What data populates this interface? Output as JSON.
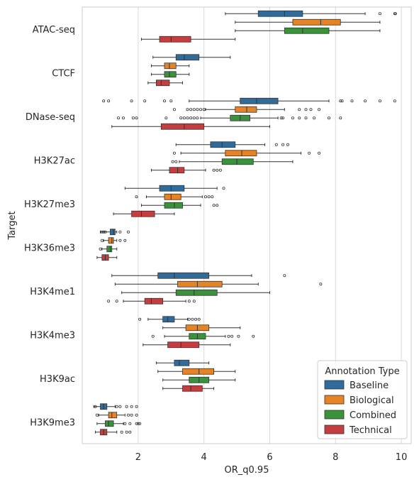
{
  "chart_data": {
    "type": "box",
    "orientation": "horizontal",
    "xlabel": "OR_q0.95",
    "ylabel": "Target",
    "xlim": [
      0.3,
      10.3
    ],
    "xticks": [
      2,
      4,
      6,
      8,
      10
    ],
    "grid": true,
    "legend": {
      "title": "Annotation Type",
      "placement": "bottom-right"
    },
    "colors": {
      "Baseline": "#2f6c9b",
      "Biological": "#e58325",
      "Combined": "#3a923a",
      "Technical": "#c53d3e"
    },
    "series_names": [
      "Baseline",
      "Biological",
      "Combined",
      "Technical"
    ],
    "categories": [
      "ATAC-seq",
      "CTCF",
      "DNase-seq",
      "H3K27ac",
      "H3K27me3",
      "H3K36me3",
      "H3K4me1",
      "H3K4me3",
      "H3K9ac",
      "H3K9me3"
    ],
    "boxes": [
      {
        "category": "ATAC-seq",
        "series": "Baseline",
        "whislo": 4.65,
        "q1": 5.65,
        "med": 6.45,
        "q3": 7.0,
        "whishi": 8.9,
        "fliers": [
          9.35,
          9.8,
          9.82
        ]
      },
      {
        "category": "ATAC-seq",
        "series": "Biological",
        "whislo": 4.95,
        "q1": 6.7,
        "med": 7.55,
        "q3": 8.15,
        "whishi": 9.35,
        "fliers": []
      },
      {
        "category": "ATAC-seq",
        "series": "Combined",
        "whislo": 4.95,
        "q1": 6.45,
        "med": 7.0,
        "q3": 7.8,
        "whishi": 9.35,
        "fliers": []
      },
      {
        "category": "ATAC-seq",
        "series": "Technical",
        "whislo": 2.1,
        "q1": 2.65,
        "med": 3.0,
        "q3": 3.6,
        "whishi": 4.95,
        "fliers": []
      },
      {
        "category": "CTCF",
        "series": "Baseline",
        "whislo": 2.45,
        "q1": 3.15,
        "med": 3.4,
        "q3": 3.85,
        "whishi": 4.8,
        "fliers": []
      },
      {
        "category": "CTCF",
        "series": "Biological",
        "whislo": 2.4,
        "q1": 2.8,
        "med": 2.95,
        "q3": 3.15,
        "whishi": 3.55,
        "fliers": []
      },
      {
        "category": "CTCF",
        "series": "Combined",
        "whislo": 2.4,
        "q1": 2.8,
        "med": 2.95,
        "q3": 3.15,
        "whishi": 3.55,
        "fliers": []
      },
      {
        "category": "CTCF",
        "series": "Technical",
        "whislo": 2.3,
        "q1": 2.55,
        "med": 2.7,
        "q3": 2.95,
        "whishi": 3.35,
        "fliers": []
      },
      {
        "category": "DNase-seq",
        "series": "Baseline",
        "whislo": 3.55,
        "q1": 5.1,
        "med": 5.6,
        "q3": 6.25,
        "whishi": 7.8,
        "fliers": [
          0.95,
          1.1,
          1.8,
          2.2,
          2.8,
          3.0,
          8.15,
          8.2,
          8.5,
          8.9,
          9.35,
          9.8
        ]
      },
      {
        "category": "DNase-seq",
        "series": "Biological",
        "whislo": 4.05,
        "q1": 4.95,
        "med": 5.3,
        "q3": 5.6,
        "whishi": 6.45,
        "fliers": [
          3.1,
          3.5,
          3.6,
          3.7,
          3.8,
          3.9,
          4.0,
          6.9,
          7.1,
          7.25,
          7.5
        ]
      },
      {
        "category": "DNase-seq",
        "series": "Combined",
        "whislo": 3.9,
        "q1": 4.8,
        "med": 5.1,
        "q3": 5.4,
        "whishi": 6.25,
        "fliers": [
          1.4,
          1.55,
          1.85,
          1.95,
          2.85,
          3.3,
          3.4,
          3.5,
          3.6,
          3.7,
          3.8,
          6.35,
          6.4,
          6.7,
          6.9,
          7.1,
          7.35,
          7.8,
          8.15
        ]
      },
      {
        "category": "DNase-seq",
        "series": "Technical",
        "whislo": 1.2,
        "q1": 2.7,
        "med": 3.4,
        "q3": 4.0,
        "whishi": 6.0,
        "fliers": []
      },
      {
        "category": "H3K27ac",
        "series": "Baseline",
        "whislo": 3.15,
        "q1": 4.2,
        "med": 4.55,
        "q3": 4.95,
        "whishi": 5.85,
        "fliers": [
          6.2,
          6.4,
          6.55
        ]
      },
      {
        "category": "H3K27ac",
        "series": "Biological",
        "whislo": 3.3,
        "q1": 4.65,
        "med": 5.15,
        "q3": 5.6,
        "whishi": 6.95,
        "fliers": [
          3.1,
          7.2,
          7.5
        ]
      },
      {
        "category": "H3K27ac",
        "series": "Combined",
        "whislo": 3.25,
        "q1": 4.55,
        "med": 5.0,
        "q3": 5.5,
        "whishi": 6.7,
        "fliers": [
          3.05,
          3.15
        ]
      },
      {
        "category": "H3K27ac",
        "series": "Technical",
        "whislo": 2.4,
        "q1": 2.95,
        "med": 3.2,
        "q3": 3.4,
        "whishi": 4.05,
        "fliers": [
          4.3,
          4.4,
          4.5
        ]
      },
      {
        "category": "H3K27me3",
        "series": "Baseline",
        "whislo": 1.6,
        "q1": 2.65,
        "med": 3.0,
        "q3": 3.4,
        "whishi": 4.4,
        "fliers": [
          4.6
        ]
      },
      {
        "category": "H3K27me3",
        "series": "Biological",
        "whislo": 2.25,
        "q1": 2.8,
        "med": 3.0,
        "q3": 3.3,
        "whishi": 3.95,
        "fliers": [
          1.95,
          4.05,
          4.15,
          4.25
        ]
      },
      {
        "category": "H3K27me3",
        "series": "Combined",
        "whislo": 2.1,
        "q1": 2.8,
        "med": 3.1,
        "q3": 3.35,
        "whishi": 3.9,
        "fliers": [
          4.3,
          4.4
        ]
      },
      {
        "category": "H3K27me3",
        "series": "Technical",
        "whislo": 1.25,
        "q1": 1.8,
        "med": 2.1,
        "q3": 2.5,
        "whishi": 3.1,
        "fliers": []
      },
      {
        "category": "H3K36me3",
        "series": "Baseline",
        "whislo": 0.85,
        "q1": 1.15,
        "med": 1.25,
        "q3": 1.3,
        "whishi": 1.35,
        "fliers": [
          0.9,
          0.95,
          1.0,
          1.45,
          1.7
        ]
      },
      {
        "category": "H3K36me3",
        "series": "Biological",
        "whislo": 0.95,
        "q1": 1.1,
        "med": 1.2,
        "q3": 1.25,
        "whishi": 1.35,
        "fliers": [
          0.9,
          1.45,
          1.6
        ]
      },
      {
        "category": "H3K36me3",
        "series": "Combined",
        "whislo": 0.9,
        "q1": 1.05,
        "med": 1.15,
        "q3": 1.2,
        "whishi": 1.35,
        "fliers": [
          0.85
        ]
      },
      {
        "category": "H3K36me3",
        "series": "Technical",
        "whislo": 0.75,
        "q1": 0.9,
        "med": 1.0,
        "q3": 1.1,
        "whishi": 1.35,
        "fliers": []
      },
      {
        "category": "H3K4me1",
        "series": "Baseline",
        "whislo": 1.2,
        "q1": 2.6,
        "med": 3.1,
        "q3": 4.15,
        "whishi": 5.45,
        "fliers": [
          6.45
        ]
      },
      {
        "category": "H3K4me1",
        "series": "Biological",
        "whislo": 1.3,
        "q1": 3.2,
        "med": 3.8,
        "q3": 4.55,
        "whishi": 5.65,
        "fliers": [
          7.55
        ]
      },
      {
        "category": "H3K4me1",
        "series": "Combined",
        "whislo": 1.5,
        "q1": 3.15,
        "med": 3.7,
        "q3": 4.4,
        "whishi": 6.0,
        "fliers": []
      },
      {
        "category": "H3K4me1",
        "series": "Technical",
        "whislo": 1.55,
        "q1": 2.2,
        "med": 2.4,
        "q3": 2.75,
        "whishi": 3.45,
        "fliers": [
          1.1,
          1.35,
          3.55,
          3.7
        ]
      },
      {
        "category": "H3K4me3",
        "series": "Baseline",
        "whislo": 2.3,
        "q1": 2.75,
        "med": 2.9,
        "q3": 3.1,
        "whishi": 3.5,
        "fliers": [
          2.05,
          3.55,
          3.65,
          3.75,
          3.85
        ]
      },
      {
        "category": "H3K4me3",
        "series": "Biological",
        "whislo": 2.75,
        "q1": 3.45,
        "med": 3.8,
        "q3": 4.15,
        "whishi": 5.1,
        "fliers": []
      },
      {
        "category": "H3K4me3",
        "series": "Combined",
        "whislo": 2.8,
        "q1": 3.55,
        "med": 3.8,
        "q3": 4.05,
        "whishi": 4.65,
        "fliers": [
          2.45,
          4.75,
          4.85,
          5.05,
          5.5
        ]
      },
      {
        "category": "H3K4me3",
        "series": "Technical",
        "whislo": 2.15,
        "q1": 2.9,
        "med": 3.3,
        "q3": 3.85,
        "whishi": 4.8,
        "fliers": []
      },
      {
        "category": "H3K9ac",
        "series": "Baseline",
        "whislo": 2.55,
        "q1": 3.1,
        "med": 3.25,
        "q3": 3.55,
        "whishi": 4.15,
        "fliers": []
      },
      {
        "category": "H3K9ac",
        "series": "Biological",
        "whislo": 2.6,
        "q1": 3.35,
        "med": 3.85,
        "q3": 4.3,
        "whishi": 4.95,
        "fliers": []
      },
      {
        "category": "H3K9ac",
        "series": "Combined",
        "whislo": 2.75,
        "q1": 3.55,
        "med": 3.85,
        "q3": 4.15,
        "whishi": 4.95,
        "fliers": []
      },
      {
        "category": "H3K9ac",
        "series": "Technical",
        "whislo": 2.75,
        "q1": 3.35,
        "med": 3.6,
        "q3": 3.95,
        "whishi": 4.3,
        "fliers": []
      },
      {
        "category": "H3K9me3",
        "series": "Baseline",
        "whislo": 0.65,
        "q1": 0.85,
        "med": 0.95,
        "q3": 1.05,
        "whishi": 1.3,
        "fliers": [
          0.7,
          1.35,
          1.45,
          1.65,
          1.8,
          1.95
        ]
      },
      {
        "category": "H3K9me3",
        "series": "Biological",
        "whislo": 0.8,
        "q1": 1.1,
        "med": 1.2,
        "q3": 1.35,
        "whishi": 1.6,
        "fliers": [
          0.75,
          1.7,
          1.8,
          1.95
        ]
      },
      {
        "category": "H3K9me3",
        "series": "Combined",
        "whislo": 0.75,
        "q1": 1.0,
        "med": 1.1,
        "q3": 1.25,
        "whishi": 1.55,
        "fliers": [
          1.6,
          1.75,
          1.95,
          2.0,
          2.05
        ]
      },
      {
        "category": "H3K9me3",
        "series": "Technical",
        "whislo": 0.7,
        "q1": 0.85,
        "med": 0.95,
        "q3": 1.05,
        "whishi": 1.35,
        "fliers": [
          1.5,
          1.65,
          1.75
        ]
      }
    ]
  }
}
